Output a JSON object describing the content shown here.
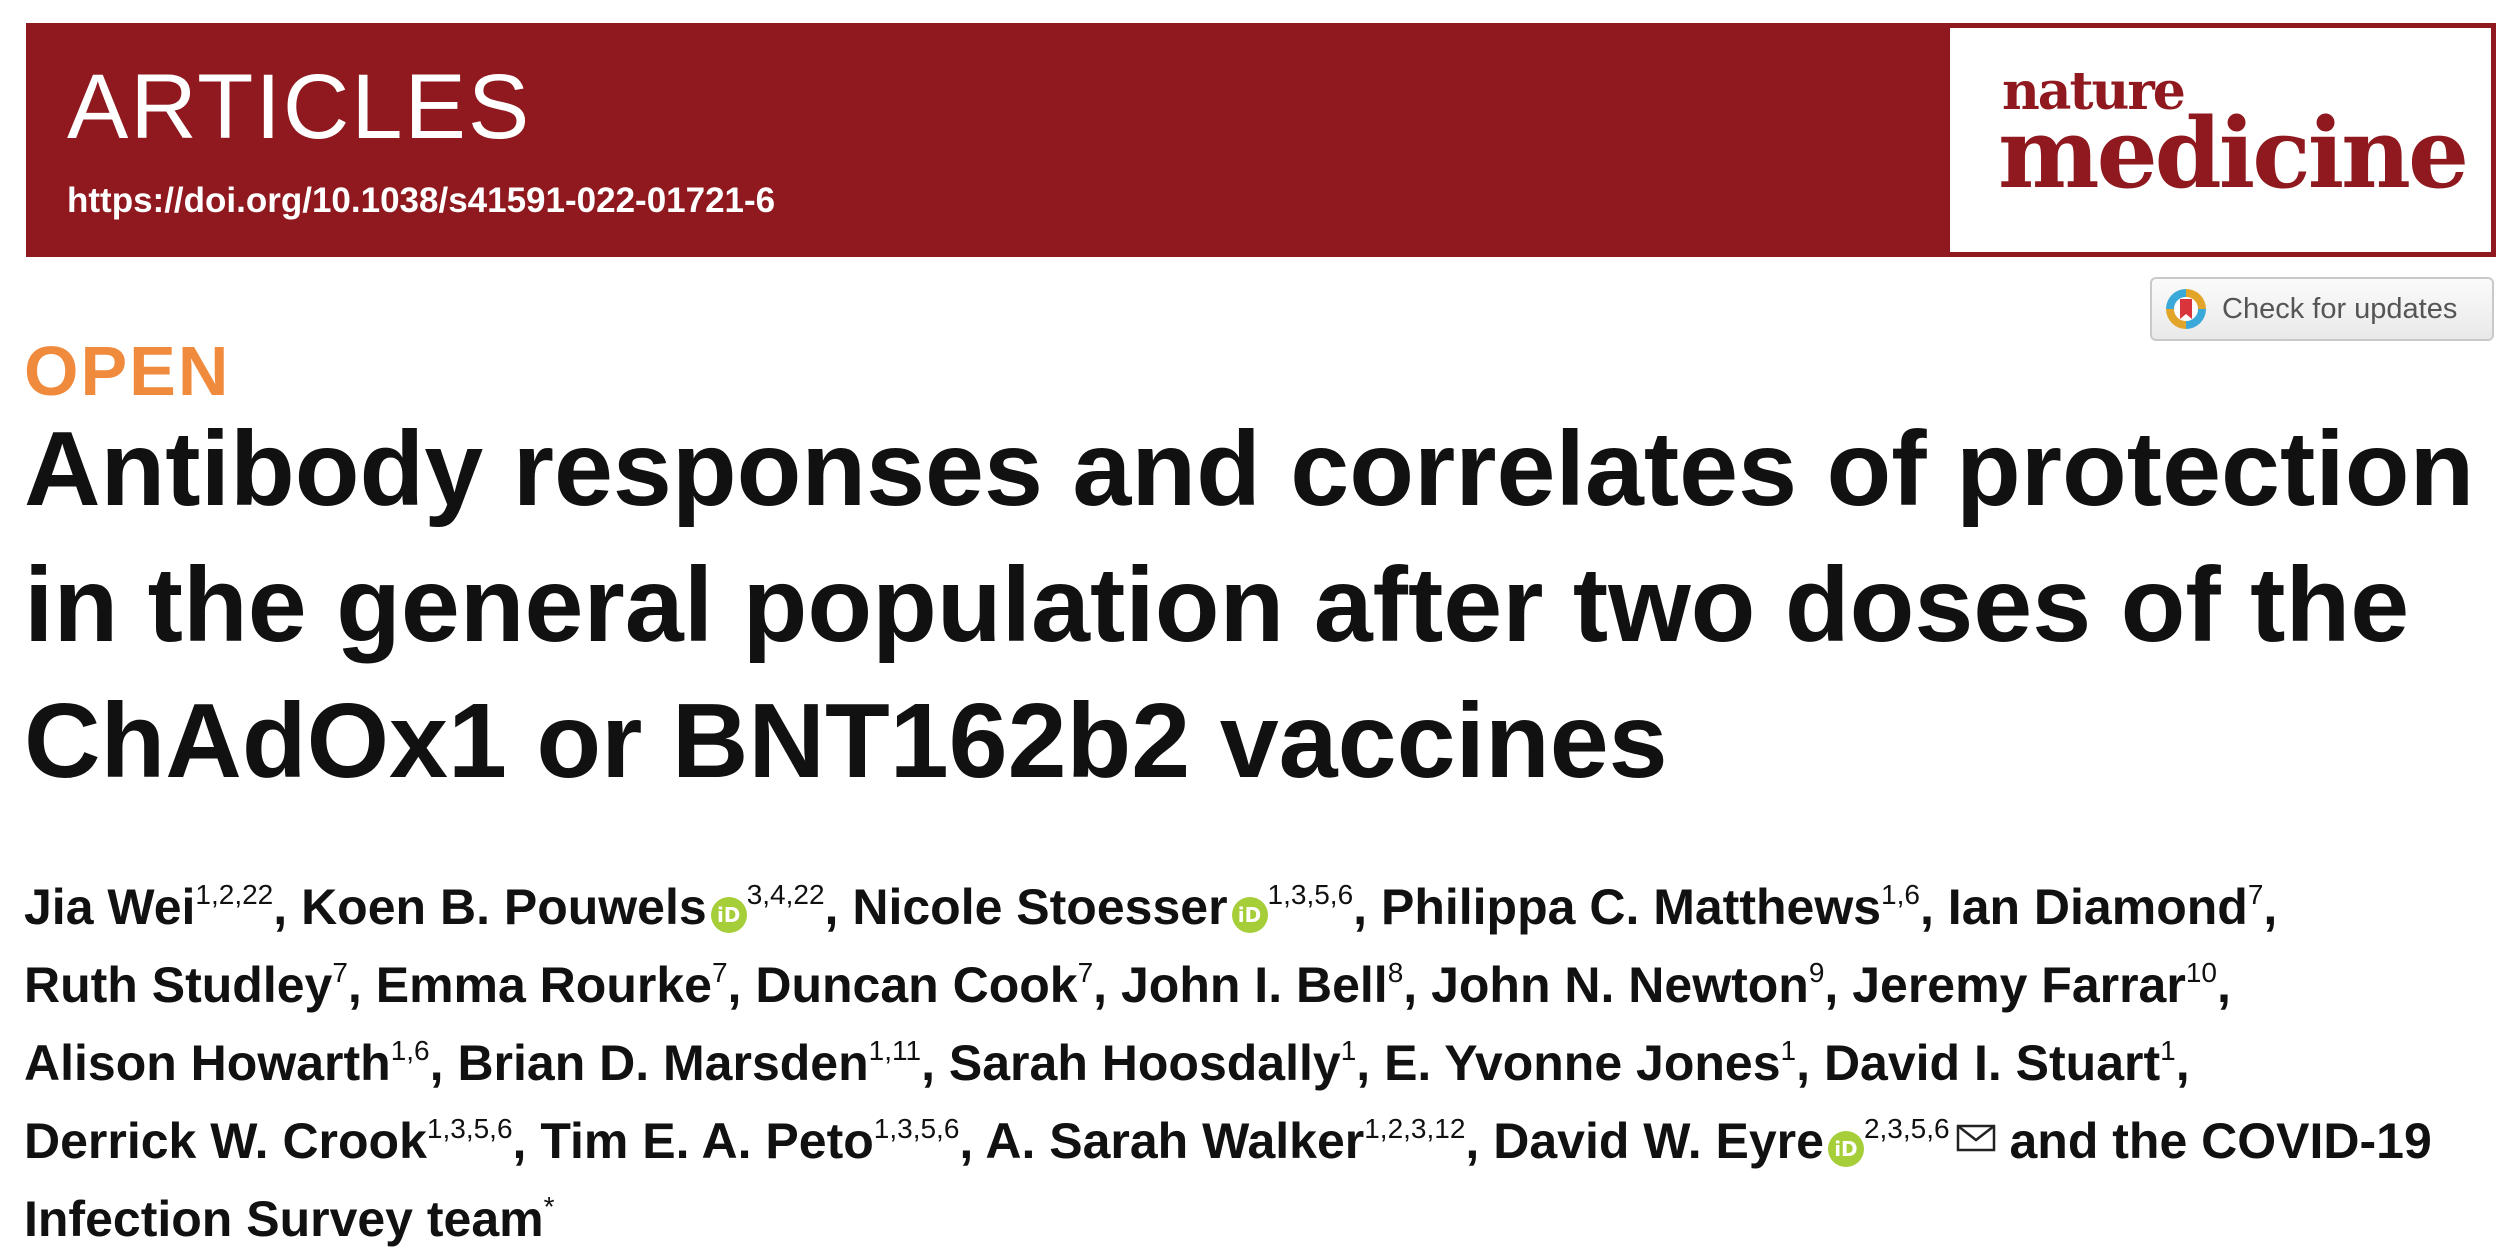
{
  "banner": {
    "section": "ARTICLES",
    "doi": "https://doi.org/10.1038/s41591-022-01721-6"
  },
  "logo": {
    "line1": "nature",
    "line2": "medicine"
  },
  "check_updates": {
    "label": "Check for updates",
    "icon": "crossmark-icon"
  },
  "open_label": "OPEN",
  "title_lines": [
    "Antibody responses and correlates of protection",
    "in the general population after two doses of the",
    "ChAdOx1 or BNT162b2 vaccines"
  ],
  "authors": [
    {
      "name": "Jia Wei",
      "aff": "1,2,22",
      "orcid": false
    },
    {
      "name": "Koen B. Pouwels",
      "aff": "3,4,22",
      "orcid": true
    },
    {
      "name": "Nicole Stoesser",
      "aff": "1,3,5,6",
      "orcid": true
    },
    {
      "name": "Philippa C. Matthews",
      "aff": "1,6",
      "orcid": false
    },
    {
      "name": "Ian Diamond",
      "aff": "7",
      "orcid": false
    },
    {
      "name": "Ruth Studley",
      "aff": "7",
      "orcid": false
    },
    {
      "name": "Emma Rourke",
      "aff": "7",
      "orcid": false
    },
    {
      "name": "Duncan Cook",
      "aff": "7",
      "orcid": false
    },
    {
      "name": "John I. Bell",
      "aff": "8",
      "orcid": false
    },
    {
      "name": "John N. Newton",
      "aff": "9",
      "orcid": false
    },
    {
      "name": "Jeremy Farrar",
      "aff": "10",
      "orcid": false
    },
    {
      "name": "Alison Howarth",
      "aff": "1,6",
      "orcid": false
    },
    {
      "name": "Brian D. Marsden",
      "aff": "1,11",
      "orcid": false
    },
    {
      "name": "Sarah Hoosdally",
      "aff": "1",
      "orcid": false
    },
    {
      "name": "E. Yvonne Jones",
      "aff": "1",
      "orcid": false
    },
    {
      "name": "David I. Stuart",
      "aff": "1",
      "orcid": false
    },
    {
      "name": "Derrick W. Crook",
      "aff": "1,3,5,6",
      "orcid": false
    },
    {
      "name": "Tim E. A. Peto",
      "aff": "1,3,5,6",
      "orcid": false
    },
    {
      "name": "A. Sarah Walker",
      "aff": "1,2,3,12",
      "orcid": false
    },
    {
      "name": "David W. Eyre",
      "aff": "2,3,5,6",
      "orcid": true,
      "corresponding": true
    }
  ],
  "authors_tail": " and the COVID-19 Infection Survey team",
  "authors_tail_mark": "*",
  "orcid_text": "iD",
  "colors": {
    "brand": "#8f191e",
    "open": "#f08a3c",
    "orcid": "#a6ce39"
  }
}
